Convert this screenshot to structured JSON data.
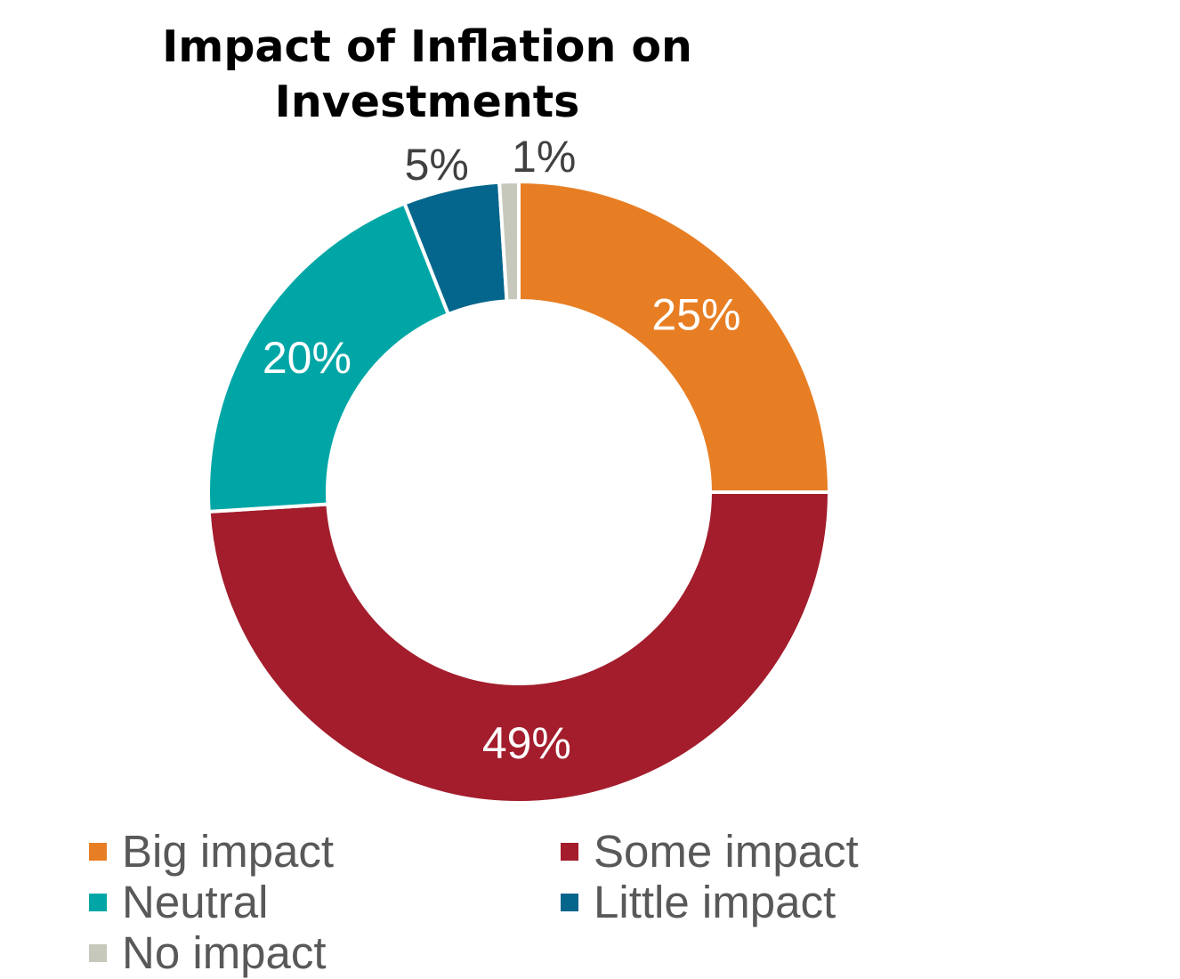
{
  "chart_data": {
    "type": "pie",
    "title_lines": [
      "Impact of Inflation on",
      "Investments"
    ],
    "slices": [
      {
        "label": "Big impact",
        "value": 25,
        "display": "25%",
        "color": "#E87E24"
      },
      {
        "label": "Some impact",
        "value": 49,
        "display": "49%",
        "color": "#A31D2C"
      },
      {
        "label": "Neutral",
        "value": 20,
        "display": "20%",
        "color": "#00A6A6"
      },
      {
        "label": "Little impact",
        "value": 5,
        "display": "5%",
        "color": "#04668C"
      },
      {
        "label": "No impact",
        "value": 1,
        "display": "1%",
        "color": "#C6C8BB"
      }
    ],
    "legend_placement": "bottom"
  }
}
